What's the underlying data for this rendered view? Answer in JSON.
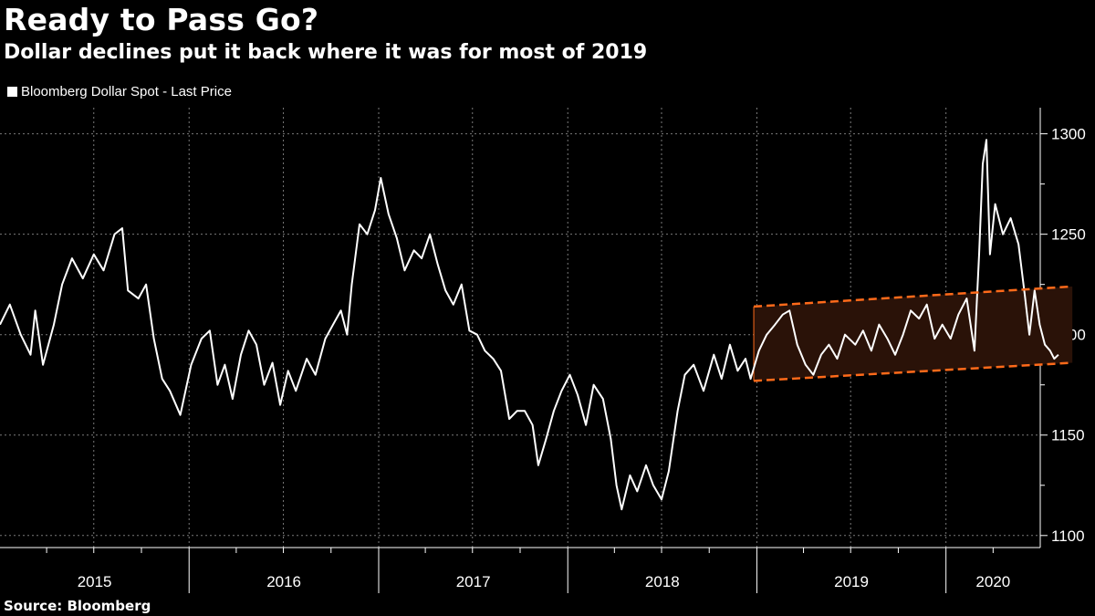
{
  "header": {
    "title": "Ready to Pass Go?",
    "subtitle": "Dollar declines put it back where it was for most of 2019"
  },
  "legend": {
    "label": "Bloomberg Dollar Spot - Last Price",
    "color": "#ffffff"
  },
  "footer": {
    "source": "Source: Bloomberg"
  },
  "colors": {
    "line": "#ffffff",
    "line_in_band": "#f3dcd6",
    "band_fill": "#2a1208",
    "band_edge": "#ff6a1a",
    "grid": "#7a7a7a"
  },
  "chart_data": {
    "type": "line",
    "title": "Ready to Pass Go?",
    "subtitle": "Dollar declines put it back where it was for most of 2019",
    "xlabel": "",
    "ylabel": "",
    "x_tick_labels": [
      "2015",
      "2016",
      "2017",
      "2018",
      "2019",
      "2020"
    ],
    "y_ticks": [
      1100,
      1150,
      1200,
      1250,
      1300
    ],
    "xlim": [
      "2015-01-01",
      "2020-07-01"
    ],
    "ylim": [
      1094,
      1313
    ],
    "grid": true,
    "legend_position": "top-left",
    "series": [
      {
        "name": "Bloomberg Dollar Spot - Last Price",
        "points": [
          [
            "2015-01-01",
            1205
          ],
          [
            "2015-01-20",
            1215
          ],
          [
            "2015-02-10",
            1200
          ],
          [
            "2015-03-01",
            1190
          ],
          [
            "2015-03-10",
            1212
          ],
          [
            "2015-03-25",
            1185
          ],
          [
            "2015-04-15",
            1205
          ],
          [
            "2015-05-01",
            1225
          ],
          [
            "2015-05-20",
            1238
          ],
          [
            "2015-06-10",
            1228
          ],
          [
            "2015-07-01",
            1240
          ],
          [
            "2015-07-20",
            1232
          ],
          [
            "2015-08-10",
            1250
          ],
          [
            "2015-08-25",
            1253
          ],
          [
            "2015-09-05",
            1222
          ],
          [
            "2015-09-25",
            1218
          ],
          [
            "2015-10-10",
            1225
          ],
          [
            "2015-10-25",
            1198
          ],
          [
            "2015-11-10",
            1178
          ],
          [
            "2015-11-25",
            1172
          ],
          [
            "2015-12-15",
            1160
          ],
          [
            "2016-01-05",
            1185
          ],
          [
            "2016-01-25",
            1198
          ],
          [
            "2016-02-10",
            1202
          ],
          [
            "2016-02-25",
            1175
          ],
          [
            "2016-03-10",
            1185
          ],
          [
            "2016-03-25",
            1168
          ],
          [
            "2016-04-10",
            1190
          ],
          [
            "2016-04-25",
            1202
          ],
          [
            "2016-05-10",
            1195
          ],
          [
            "2016-05-25",
            1175
          ],
          [
            "2016-06-10",
            1186
          ],
          [
            "2016-06-25",
            1165
          ],
          [
            "2016-07-10",
            1182
          ],
          [
            "2016-07-25",
            1172
          ],
          [
            "2016-08-15",
            1188
          ],
          [
            "2016-09-01",
            1180
          ],
          [
            "2016-09-20",
            1198
          ],
          [
            "2016-10-05",
            1205
          ],
          [
            "2016-10-20",
            1212
          ],
          [
            "2016-11-01",
            1200
          ],
          [
            "2016-11-10",
            1225
          ],
          [
            "2016-11-25",
            1255
          ],
          [
            "2016-12-10",
            1250
          ],
          [
            "2016-12-25",
            1262
          ],
          [
            "2017-01-05",
            1278
          ],
          [
            "2017-01-20",
            1260
          ],
          [
            "2017-02-05",
            1248
          ],
          [
            "2017-02-20",
            1232
          ],
          [
            "2017-03-10",
            1242
          ],
          [
            "2017-03-25",
            1238
          ],
          [
            "2017-04-10",
            1250
          ],
          [
            "2017-04-25",
            1235
          ],
          [
            "2017-05-10",
            1222
          ],
          [
            "2017-05-25",
            1215
          ],
          [
            "2017-06-10",
            1225
          ],
          [
            "2017-06-25",
            1202
          ],
          [
            "2017-07-10",
            1200
          ],
          [
            "2017-07-25",
            1192
          ],
          [
            "2017-08-10",
            1188
          ],
          [
            "2017-08-25",
            1182
          ],
          [
            "2017-09-10",
            1158
          ],
          [
            "2017-09-25",
            1162
          ],
          [
            "2017-10-10",
            1162
          ],
          [
            "2017-10-25",
            1155
          ],
          [
            "2017-11-05",
            1135
          ],
          [
            "2017-11-20",
            1148
          ],
          [
            "2017-12-05",
            1162
          ],
          [
            "2017-12-20",
            1172
          ],
          [
            "2018-01-05",
            1180
          ],
          [
            "2018-01-20",
            1170
          ],
          [
            "2018-02-05",
            1155
          ],
          [
            "2018-02-20",
            1175
          ],
          [
            "2018-03-10",
            1168
          ],
          [
            "2018-03-25",
            1148
          ],
          [
            "2018-04-05",
            1125
          ],
          [
            "2018-04-15",
            1113
          ],
          [
            "2018-05-01",
            1130
          ],
          [
            "2018-05-15",
            1122
          ],
          [
            "2018-06-01",
            1135
          ],
          [
            "2018-06-15",
            1125
          ],
          [
            "2018-07-01",
            1118
          ],
          [
            "2018-07-15",
            1132
          ],
          [
            "2018-08-01",
            1162
          ],
          [
            "2018-08-15",
            1180
          ],
          [
            "2018-09-01",
            1185
          ],
          [
            "2018-09-20",
            1172
          ],
          [
            "2018-10-10",
            1190
          ],
          [
            "2018-10-25",
            1178
          ],
          [
            "2018-11-10",
            1195
          ],
          [
            "2018-11-25",
            1182
          ],
          [
            "2018-12-10",
            1188
          ],
          [
            "2018-12-20",
            1178
          ],
          [
            "2019-01-05",
            1192
          ],
          [
            "2019-01-20",
            1200
          ],
          [
            "2019-02-05",
            1205
          ],
          [
            "2019-02-20",
            1210
          ],
          [
            "2019-03-05",
            1212
          ],
          [
            "2019-03-20",
            1195
          ],
          [
            "2019-04-05",
            1185
          ],
          [
            "2019-04-20",
            1180
          ],
          [
            "2019-05-05",
            1190
          ],
          [
            "2019-05-20",
            1195
          ],
          [
            "2019-06-05",
            1188
          ],
          [
            "2019-06-20",
            1200
          ],
          [
            "2019-07-10",
            1195
          ],
          [
            "2019-07-25",
            1202
          ],
          [
            "2019-08-10",
            1192
          ],
          [
            "2019-08-25",
            1205
          ],
          [
            "2019-09-10",
            1198
          ],
          [
            "2019-09-25",
            1190
          ],
          [
            "2019-10-10",
            1200
          ],
          [
            "2019-10-25",
            1212
          ],
          [
            "2019-11-10",
            1208
          ],
          [
            "2019-11-25",
            1215
          ],
          [
            "2019-12-10",
            1198
          ],
          [
            "2019-12-25",
            1205
          ],
          [
            "2020-01-10",
            1198
          ],
          [
            "2020-01-25",
            1210
          ],
          [
            "2020-02-10",
            1218
          ],
          [
            "2020-02-25",
            1192
          ],
          [
            "2020-03-05",
            1240
          ],
          [
            "2020-03-12",
            1285
          ],
          [
            "2020-03-19",
            1297
          ],
          [
            "2020-03-26",
            1240
          ],
          [
            "2020-04-05",
            1265
          ],
          [
            "2020-04-20",
            1250
          ],
          [
            "2020-05-05",
            1258
          ],
          [
            "2020-05-20",
            1245
          ],
          [
            "2020-06-01",
            1220
          ],
          [
            "2020-06-10",
            1200
          ],
          [
            "2020-06-20",
            1222
          ],
          [
            "2020-06-30",
            1205
          ],
          [
            "2020-07-10",
            1195
          ],
          [
            "2020-07-20",
            1192
          ],
          [
            "2020-07-28",
            1188
          ],
          [
            "2020-08-05",
            1190
          ]
        ]
      }
    ],
    "annotations": [
      {
        "type": "channel",
        "upper": [
          [
            "2018-12-26",
            1214
          ],
          [
            "2020-09-01",
            1224
          ]
        ],
        "lower": [
          [
            "2018-12-26",
            1177
          ],
          [
            "2020-09-01",
            1186
          ]
        ]
      }
    ]
  }
}
